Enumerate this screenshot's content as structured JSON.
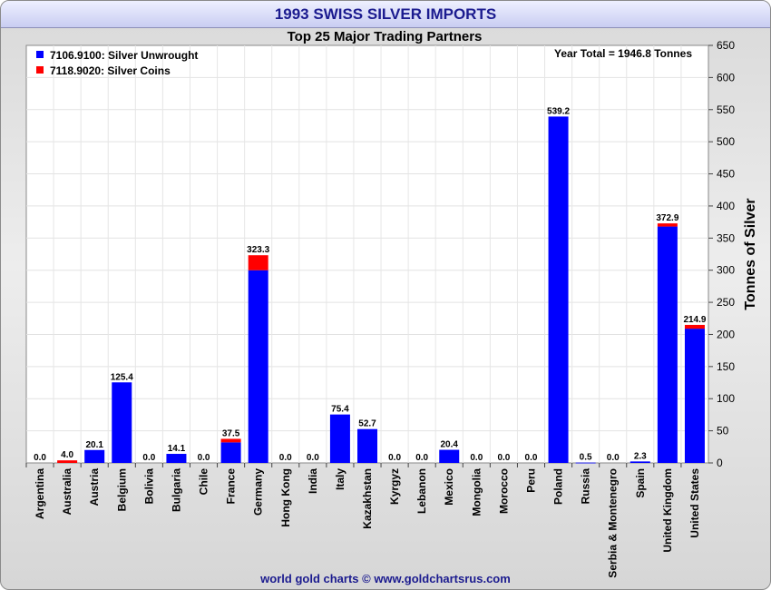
{
  "chart_data": {
    "type": "bar",
    "stacked": true,
    "title": "1993 SWISS SILVER IMPORTS",
    "subtitle": "Top 25 Major Trading Partners",
    "xlabel": "",
    "ylabel": "Tonnes of Silver",
    "ylim": [
      0,
      650
    ],
    "ytick_step": 50,
    "grid": true,
    "legend_position": "top-left",
    "annotation": "Year Total = 1946.8 Tonnes",
    "categories": [
      "Argentina",
      "Australia",
      "Austria",
      "Belgium",
      "Bolivia",
      "Bulgaria",
      "Chile",
      "France",
      "Germany",
      "Hong Kong",
      "India",
      "Italy",
      "Kazakhstan",
      "Kyrgyz",
      "Lebanon",
      "Mexico",
      "Mongolia",
      "Morocco",
      "Peru",
      "Poland",
      "Russia",
      "Serbia & Montenegro",
      "Spain",
      "United Kingdom",
      "United States"
    ],
    "series": [
      {
        "name": "7106.9100: Silver Unwrought",
        "color": "#0000ff",
        "values": [
          0,
          0,
          20.1,
          125.4,
          0,
          14.1,
          0,
          32,
          300,
          0,
          0,
          75.4,
          52.7,
          0,
          0,
          20.4,
          0,
          0,
          0,
          539.2,
          0.5,
          0,
          2.3,
          368,
          209
        ]
      },
      {
        "name": "7118.9020: Silver Coins",
        "color": "#ff0000",
        "values": [
          0,
          4.0,
          0,
          0,
          0,
          0,
          0,
          5.5,
          23.3,
          0,
          0,
          0,
          0,
          0,
          0,
          0,
          0,
          0,
          0,
          0,
          0,
          0,
          0,
          4.9,
          5.9
        ]
      }
    ],
    "totals": [
      "0.0",
      "4.0",
      "20.1",
      "125.4",
      "0.0",
      "14.1",
      "0.0",
      "37.5",
      "323.3",
      "0.0",
      "0.0",
      "75.4",
      "52.7",
      "0.0",
      "0.0",
      "20.4",
      "0.0",
      "0.0",
      "0.0",
      "539.2",
      "0.5",
      "0.0",
      "2.3",
      "372.9",
      "214.9"
    ]
  },
  "footer": "world gold charts © www.goldchartsrus.com"
}
